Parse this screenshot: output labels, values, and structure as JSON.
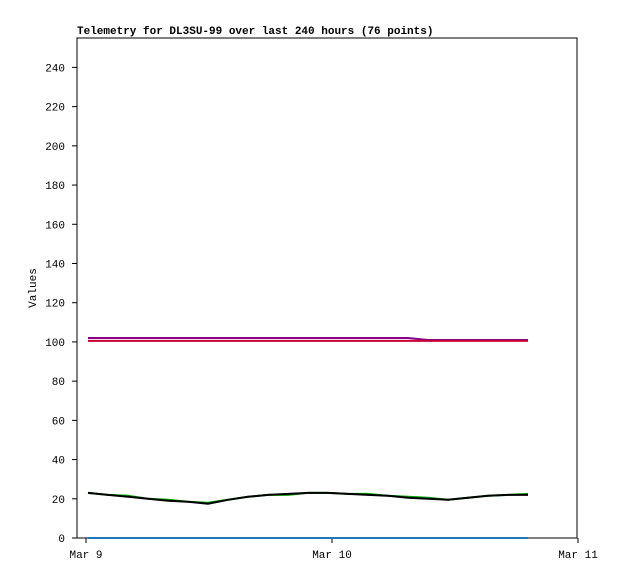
{
  "chart_data": {
    "type": "line",
    "title": "Telemetry for DL3SU-99 over last 240 hours (76 points)",
    "y_label": "Values",
    "xticks": [
      "Mar 9",
      "Mar 10",
      "Mar 11"
    ],
    "ylim": [
      0,
      255
    ],
    "yticks": [
      0,
      20,
      40,
      60,
      80,
      100,
      120,
      140,
      160,
      180,
      200,
      220,
      240
    ],
    "series": [
      {
        "color": "#880088",
        "values": [
          102,
          102,
          102,
          102,
          102,
          102,
          102,
          102,
          102,
          102,
          102,
          102,
          102,
          102,
          102,
          102,
          102,
          101,
          101,
          101,
          101,
          101,
          101
        ]
      },
      {
        "color": "#cc0033",
        "values": [
          100.5,
          100.5,
          100.5,
          100.5,
          100.5,
          100.5,
          100.5,
          100.5,
          100.5,
          100.5,
          100.5,
          100.5,
          100.5,
          100.5,
          100.5,
          100.5,
          100.5,
          100.5,
          100.5,
          100.5,
          100.5,
          100.5,
          100.5
        ]
      },
      {
        "color": "#00aa00",
        "values": [
          23,
          22,
          21.5,
          20,
          19.5,
          18.5,
          18,
          19.5,
          21,
          22,
          22,
          23,
          23,
          22.5,
          22.5,
          21.5,
          21,
          20.5,
          19.5,
          20.5,
          21.5,
          22,
          22.5
        ]
      },
      {
        "color": "#000000",
        "values": [
          23,
          22,
          21,
          20,
          19,
          18.5,
          17.5,
          19.5,
          21,
          22,
          22.5,
          23,
          23,
          22.5,
          22,
          21.5,
          20.5,
          20,
          19.5,
          20.5,
          21.5,
          22,
          22
        ]
      },
      {
        "color": "#1f77b4",
        "values": [
          0,
          0,
          0,
          0,
          0,
          0,
          0,
          0,
          0,
          0,
          0,
          0,
          0,
          0,
          0,
          0,
          0,
          0,
          0,
          0,
          0,
          0,
          0
        ]
      }
    ]
  }
}
